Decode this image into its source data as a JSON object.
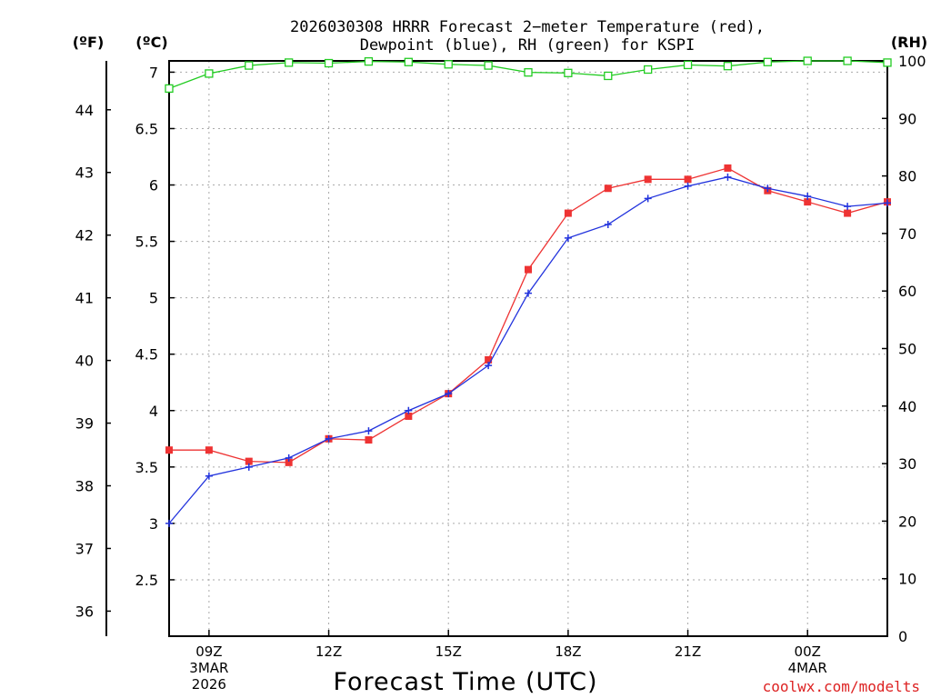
{
  "chart_data": {
    "type": "line",
    "title_line1": "2026030308 HRRR Forecast 2−meter Temperature (red),",
    "title_line2": "Dewpoint (blue), RH (green) for KSPI",
    "xlabel": "Forecast Time (UTC)",
    "credit": "coolwx.com/modelts",
    "left_outer_unit": "(ºF)",
    "left_inner_unit": "(ºC)",
    "right_unit": "(RH)",
    "x_range_hours": [
      8,
      26
    ],
    "x_ticks": [
      {
        "hour": 9,
        "lines": [
          "09Z",
          "3MAR",
          "2026"
        ]
      },
      {
        "hour": 12,
        "lines": [
          "12Z"
        ]
      },
      {
        "hour": 15,
        "lines": [
          "15Z"
        ]
      },
      {
        "hour": 18,
        "lines": [
          "18Z"
        ]
      },
      {
        "hour": 21,
        "lines": [
          "21Z"
        ]
      },
      {
        "hour": 24,
        "lines": [
          "00Z",
          "4MAR"
        ]
      }
    ],
    "celsius_range": [
      2.0,
      7.1
    ],
    "celsius_ticks": [
      "2.5",
      "3",
      "3.5",
      "4",
      "4.5",
      "5",
      "5.5",
      "6",
      "6.5",
      "7"
    ],
    "fahrenheit_ticks": [
      "36",
      "37",
      "38",
      "39",
      "40",
      "41",
      "42",
      "43",
      "44"
    ],
    "rh_range": [
      0,
      100
    ],
    "rh_ticks": [
      "0",
      "10",
      "20",
      "30",
      "40",
      "50",
      "60",
      "70",
      "80",
      "90",
      "100"
    ],
    "hours": [
      8,
      9,
      10,
      11,
      12,
      13,
      14,
      15,
      16,
      17,
      18,
      19,
      20,
      21,
      22,
      23,
      24,
      25,
      26
    ],
    "series": [
      {
        "name": "Temperature",
        "unit": "C",
        "color": "#ee3333",
        "marker": "filled-square",
        "values": [
          3.65,
          3.65,
          3.55,
          3.54,
          3.75,
          3.74,
          3.95,
          4.15,
          4.45,
          5.25,
          5.75,
          5.97,
          6.05,
          6.05,
          6.15,
          5.95,
          5.85,
          5.75,
          5.85
        ]
      },
      {
        "name": "Dewpoint",
        "unit": "C",
        "color": "#2233dd",
        "marker": "plus",
        "values": [
          3.0,
          3.42,
          3.5,
          3.58,
          3.75,
          3.82,
          4.0,
          4.15,
          4.4,
          5.04,
          5.53,
          5.65,
          5.88,
          5.99,
          6.07,
          5.97,
          5.9,
          5.81,
          5.84
        ]
      },
      {
        "name": "RH",
        "unit": "%",
        "color": "#22cc22",
        "marker": "open-square",
        "values": [
          95.2,
          97.8,
          99.2,
          99.7,
          99.6,
          99.9,
          99.8,
          99.4,
          99.2,
          98.0,
          97.9,
          97.4,
          98.5,
          99.3,
          99.1,
          99.8,
          100,
          100,
          99.7
        ]
      }
    ]
  }
}
